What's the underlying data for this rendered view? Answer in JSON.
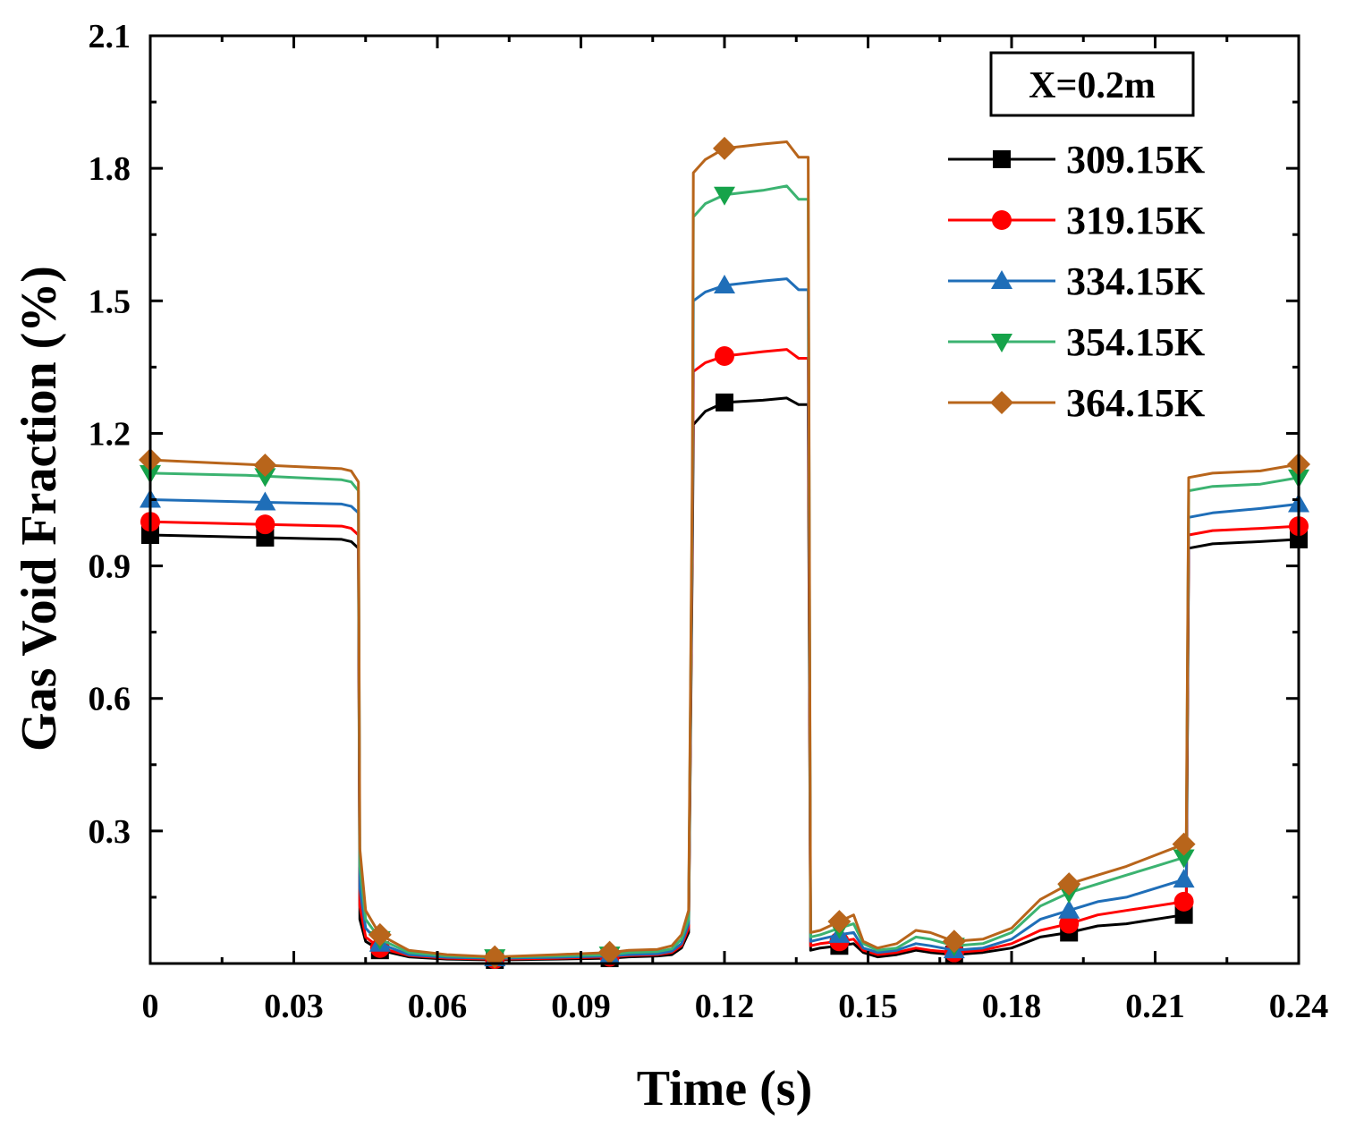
{
  "chart_data": {
    "type": "line",
    "title": "",
    "xlabel": "Time (s)",
    "ylabel": "Gas Void Fraction (%)",
    "xlim": [
      0,
      0.24
    ],
    "ylim": [
      0,
      2.1
    ],
    "x_ticks": [
      0,
      0.03,
      0.06,
      0.09,
      0.12,
      0.15,
      0.18,
      0.21,
      0.24
    ],
    "x_tick_labels": [
      "0",
      "0.03",
      "0.06",
      "0.09",
      "0.12",
      "0.15",
      "0.18",
      "0.21",
      "0.24"
    ],
    "y_ticks": [
      0.3,
      0.6,
      0.9,
      1.2,
      1.5,
      1.8,
      2.1
    ],
    "y_tick_labels": [
      "0.3",
      "0.6",
      "0.9",
      "1.2",
      "1.5",
      "1.8",
      "2.1"
    ],
    "grid": false,
    "legend_position": "top-right",
    "annotation": "X=0.2m",
    "marker_x": [
      0,
      0.024,
      0.048,
      0.072,
      0.096,
      0.12,
      0.144,
      0.168,
      0.192,
      0.216,
      0.24
    ],
    "series": [
      {
        "name": "309.15K",
        "color": "#000000",
        "marker": "square",
        "points": [
          [
            0,
            0.97
          ],
          [
            0.02,
            0.965
          ],
          [
            0.04,
            0.96
          ],
          [
            0.042,
            0.955
          ],
          [
            0.0435,
            0.94
          ],
          [
            0.0438,
            0.1
          ],
          [
            0.045,
            0.05
          ],
          [
            0.048,
            0.03
          ],
          [
            0.054,
            0.015
          ],
          [
            0.062,
            0.01
          ],
          [
            0.072,
            0.008
          ],
          [
            0.085,
            0.01
          ],
          [
            0.096,
            0.012
          ],
          [
            0.1,
            0.015
          ],
          [
            0.106,
            0.017
          ],
          [
            0.109,
            0.02
          ],
          [
            0.111,
            0.035
          ],
          [
            0.1125,
            0.07
          ],
          [
            0.1133,
            0.95
          ],
          [
            0.1135,
            1.22
          ],
          [
            0.116,
            1.25
          ],
          [
            0.12,
            1.27
          ],
          [
            0.128,
            1.275
          ],
          [
            0.133,
            1.28
          ],
          [
            0.1355,
            1.265
          ],
          [
            0.1375,
            1.265
          ],
          [
            0.138,
            0.03
          ],
          [
            0.14,
            0.035
          ],
          [
            0.144,
            0.04
          ],
          [
            0.147,
            0.045
          ],
          [
            0.149,
            0.025
          ],
          [
            0.152,
            0.015
          ],
          [
            0.156,
            0.02
          ],
          [
            0.16,
            0.03
          ],
          [
            0.163,
            0.025
          ],
          [
            0.168,
            0.02
          ],
          [
            0.174,
            0.025
          ],
          [
            0.18,
            0.035
          ],
          [
            0.186,
            0.06
          ],
          [
            0.192,
            0.07
          ],
          [
            0.198,
            0.085
          ],
          [
            0.204,
            0.09
          ],
          [
            0.21,
            0.1
          ],
          [
            0.216,
            0.11
          ],
          [
            0.2165,
            0.12
          ],
          [
            0.217,
            0.94
          ],
          [
            0.222,
            0.95
          ],
          [
            0.232,
            0.955
          ],
          [
            0.24,
            0.96
          ]
        ]
      },
      {
        "name": "319.15K",
        "color": "#ff0000",
        "marker": "circle",
        "points": [
          [
            0,
            1.0
          ],
          [
            0.02,
            0.995
          ],
          [
            0.04,
            0.99
          ],
          [
            0.042,
            0.985
          ],
          [
            0.0435,
            0.97
          ],
          [
            0.0438,
            0.13
          ],
          [
            0.045,
            0.06
          ],
          [
            0.048,
            0.035
          ],
          [
            0.054,
            0.018
          ],
          [
            0.062,
            0.012
          ],
          [
            0.072,
            0.01
          ],
          [
            0.085,
            0.012
          ],
          [
            0.096,
            0.015
          ],
          [
            0.1,
            0.018
          ],
          [
            0.106,
            0.02
          ],
          [
            0.109,
            0.025
          ],
          [
            0.111,
            0.04
          ],
          [
            0.1125,
            0.08
          ],
          [
            0.1133,
            1.0
          ],
          [
            0.1135,
            1.34
          ],
          [
            0.116,
            1.36
          ],
          [
            0.12,
            1.375
          ],
          [
            0.128,
            1.385
          ],
          [
            0.133,
            1.39
          ],
          [
            0.1355,
            1.37
          ],
          [
            0.1375,
            1.37
          ],
          [
            0.138,
            0.04
          ],
          [
            0.14,
            0.045
          ],
          [
            0.144,
            0.05
          ],
          [
            0.147,
            0.055
          ],
          [
            0.149,
            0.03
          ],
          [
            0.152,
            0.02
          ],
          [
            0.156,
            0.025
          ],
          [
            0.16,
            0.035
          ],
          [
            0.163,
            0.03
          ],
          [
            0.168,
            0.025
          ],
          [
            0.174,
            0.03
          ],
          [
            0.18,
            0.045
          ],
          [
            0.186,
            0.075
          ],
          [
            0.192,
            0.09
          ],
          [
            0.198,
            0.11
          ],
          [
            0.204,
            0.12
          ],
          [
            0.21,
            0.13
          ],
          [
            0.216,
            0.14
          ],
          [
            0.2165,
            0.15
          ],
          [
            0.217,
            0.97
          ],
          [
            0.222,
            0.98
          ],
          [
            0.232,
            0.985
          ],
          [
            0.24,
            0.99
          ]
        ]
      },
      {
        "name": "334.15K",
        "color": "#1f6eb8",
        "marker": "triangle-up",
        "points": [
          [
            0,
            1.05
          ],
          [
            0.02,
            1.045
          ],
          [
            0.04,
            1.04
          ],
          [
            0.042,
            1.035
          ],
          [
            0.0435,
            1.02
          ],
          [
            0.0438,
            0.17
          ],
          [
            0.045,
            0.08
          ],
          [
            0.048,
            0.045
          ],
          [
            0.054,
            0.02
          ],
          [
            0.062,
            0.014
          ],
          [
            0.072,
            0.012
          ],
          [
            0.085,
            0.014
          ],
          [
            0.096,
            0.017
          ],
          [
            0.1,
            0.02
          ],
          [
            0.106,
            0.022
          ],
          [
            0.109,
            0.028
          ],
          [
            0.111,
            0.045
          ],
          [
            0.1125,
            0.09
          ],
          [
            0.1133,
            1.05
          ],
          [
            0.1135,
            1.5
          ],
          [
            0.116,
            1.52
          ],
          [
            0.12,
            1.535
          ],
          [
            0.128,
            1.545
          ],
          [
            0.133,
            1.55
          ],
          [
            0.1355,
            1.525
          ],
          [
            0.1375,
            1.525
          ],
          [
            0.138,
            0.05
          ],
          [
            0.14,
            0.055
          ],
          [
            0.144,
            0.065
          ],
          [
            0.147,
            0.07
          ],
          [
            0.149,
            0.035
          ],
          [
            0.152,
            0.025
          ],
          [
            0.156,
            0.03
          ],
          [
            0.16,
            0.045
          ],
          [
            0.163,
            0.04
          ],
          [
            0.168,
            0.03
          ],
          [
            0.174,
            0.035
          ],
          [
            0.18,
            0.055
          ],
          [
            0.186,
            0.1
          ],
          [
            0.192,
            0.12
          ],
          [
            0.198,
            0.14
          ],
          [
            0.204,
            0.15
          ],
          [
            0.21,
            0.17
          ],
          [
            0.216,
            0.19
          ],
          [
            0.2165,
            0.2
          ],
          [
            0.217,
            1.01
          ],
          [
            0.222,
            1.02
          ],
          [
            0.232,
            1.03
          ],
          [
            0.24,
            1.04
          ]
        ]
      },
      {
        "name": "354.15K",
        "color": "#3cb371",
        "marker": "triangle-down",
        "markerColor": "#16a34a",
        "points": [
          [
            0,
            1.11
          ],
          [
            0.02,
            1.105
          ],
          [
            0.04,
            1.095
          ],
          [
            0.042,
            1.09
          ],
          [
            0.0435,
            1.07
          ],
          [
            0.0438,
            0.22
          ],
          [
            0.045,
            0.1
          ],
          [
            0.048,
            0.055
          ],
          [
            0.054,
            0.025
          ],
          [
            0.062,
            0.017
          ],
          [
            0.072,
            0.014
          ],
          [
            0.085,
            0.017
          ],
          [
            0.096,
            0.02
          ],
          [
            0.1,
            0.025
          ],
          [
            0.106,
            0.027
          ],
          [
            0.109,
            0.033
          ],
          [
            0.111,
            0.055
          ],
          [
            0.1125,
            0.1
          ],
          [
            0.1133,
            1.1
          ],
          [
            0.1135,
            1.69
          ],
          [
            0.116,
            1.72
          ],
          [
            0.12,
            1.74
          ],
          [
            0.128,
            1.75
          ],
          [
            0.133,
            1.76
          ],
          [
            0.1355,
            1.73
          ],
          [
            0.1375,
            1.73
          ],
          [
            0.138,
            0.06
          ],
          [
            0.14,
            0.065
          ],
          [
            0.144,
            0.08
          ],
          [
            0.147,
            0.09
          ],
          [
            0.149,
            0.045
          ],
          [
            0.152,
            0.03
          ],
          [
            0.156,
            0.035
          ],
          [
            0.16,
            0.06
          ],
          [
            0.163,
            0.055
          ],
          [
            0.168,
            0.04
          ],
          [
            0.174,
            0.045
          ],
          [
            0.18,
            0.07
          ],
          [
            0.186,
            0.13
          ],
          [
            0.192,
            0.16
          ],
          [
            0.198,
            0.18
          ],
          [
            0.204,
            0.2
          ],
          [
            0.21,
            0.22
          ],
          [
            0.216,
            0.24
          ],
          [
            0.2165,
            0.25
          ],
          [
            0.217,
            1.07
          ],
          [
            0.222,
            1.08
          ],
          [
            0.232,
            1.085
          ],
          [
            0.24,
            1.1
          ]
        ]
      },
      {
        "name": "364.15K",
        "color": "#b8651b",
        "marker": "diamond",
        "points": [
          [
            0,
            1.14
          ],
          [
            0.02,
            1.13
          ],
          [
            0.04,
            1.12
          ],
          [
            0.042,
            1.115
          ],
          [
            0.0435,
            1.09
          ],
          [
            0.0438,
            0.26
          ],
          [
            0.045,
            0.12
          ],
          [
            0.048,
            0.065
          ],
          [
            0.054,
            0.03
          ],
          [
            0.062,
            0.02
          ],
          [
            0.072,
            0.015
          ],
          [
            0.085,
            0.02
          ],
          [
            0.096,
            0.025
          ],
          [
            0.1,
            0.03
          ],
          [
            0.106,
            0.032
          ],
          [
            0.109,
            0.04
          ],
          [
            0.111,
            0.065
          ],
          [
            0.1125,
            0.12
          ],
          [
            0.1133,
            1.15
          ],
          [
            0.1135,
            1.79
          ],
          [
            0.116,
            1.82
          ],
          [
            0.12,
            1.845
          ],
          [
            0.128,
            1.855
          ],
          [
            0.133,
            1.86
          ],
          [
            0.1355,
            1.825
          ],
          [
            0.1375,
            1.825
          ],
          [
            0.138,
            0.07
          ],
          [
            0.14,
            0.075
          ],
          [
            0.144,
            0.095
          ],
          [
            0.147,
            0.11
          ],
          [
            0.149,
            0.05
          ],
          [
            0.152,
            0.035
          ],
          [
            0.156,
            0.045
          ],
          [
            0.16,
            0.075
          ],
          [
            0.163,
            0.07
          ],
          [
            0.168,
            0.05
          ],
          [
            0.174,
            0.055
          ],
          [
            0.18,
            0.08
          ],
          [
            0.186,
            0.145
          ],
          [
            0.192,
            0.18
          ],
          [
            0.198,
            0.2
          ],
          [
            0.204,
            0.22
          ],
          [
            0.21,
            0.245
          ],
          [
            0.216,
            0.27
          ],
          [
            0.2165,
            0.28
          ],
          [
            0.217,
            1.1
          ],
          [
            0.222,
            1.11
          ],
          [
            0.232,
            1.115
          ],
          [
            0.24,
            1.13
          ]
        ]
      }
    ]
  }
}
